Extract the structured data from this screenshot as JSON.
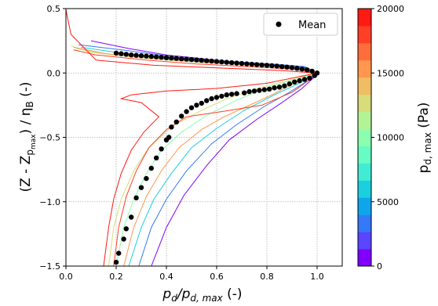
{
  "chart_data": {
    "type": "line",
    "xlabel_main": "p",
    "xlabel_sub1": "d",
    "xlabel_mid": "/p",
    "xlabel_sub2": "d, max",
    "xlabel_unit": " (-)",
    "ylabel_a": "(Z - Z",
    "ylabel_sub": "p",
    "ylabel_subsub": "max",
    "ylabel_b": ") / η",
    "ylabel_sub2": "B",
    "ylabel_unit": " (-)",
    "xlim": [
      0.0,
      1.1
    ],
    "ylim": [
      -1.5,
      0.5
    ],
    "xticks": [
      "0.0",
      "0.2",
      "0.4",
      "0.6",
      "0.8",
      "1.0"
    ],
    "yticks": [
      "0.5",
      "0.0",
      "−0.5",
      "−1.0",
      "−1.5"
    ],
    "grid": true,
    "legend_position": "top-right",
    "legend_label": "Mean",
    "colorbar": {
      "label_main": "p",
      "label_sub": "d, max",
      "label_unit": " (Pa)",
      "range": [
        0,
        20000
      ],
      "ticks": [
        "0",
        "5000",
        "10000",
        "15000",
        "20000"
      ],
      "colors": [
        "#8000ff",
        "#5a46fe",
        "#3479f6",
        "#0ea5eb",
        "#1acfe0",
        "#40ecd4",
        "#66fcc4",
        "#8cfeb0",
        "#b2f396",
        "#d8dc7a",
        "#f0bd62",
        "#ff974d",
        "#ff6e3a",
        "#ff4027",
        "#ff1a13"
      ]
    },
    "mean": {
      "name": "Mean",
      "points": [
        [
          0.2,
          0.155
        ],
        [
          0.22,
          0.15
        ],
        [
          0.24,
          0.145
        ],
        [
          0.26,
          0.14
        ],
        [
          0.28,
          0.137
        ],
        [
          0.3,
          0.134
        ],
        [
          0.32,
          0.131
        ],
        [
          0.34,
          0.128
        ],
        [
          0.36,
          0.125
        ],
        [
          0.38,
          0.122
        ],
        [
          0.4,
          0.119
        ],
        [
          0.42,
          0.116
        ],
        [
          0.44,
          0.113
        ],
        [
          0.46,
          0.11
        ],
        [
          0.48,
          0.107
        ],
        [
          0.5,
          0.104
        ],
        [
          0.52,
          0.101
        ],
        [
          0.54,
          0.098
        ],
        [
          0.56,
          0.095
        ],
        [
          0.58,
          0.092
        ],
        [
          0.6,
          0.089
        ],
        [
          0.62,
          0.086
        ],
        [
          0.64,
          0.083
        ],
        [
          0.66,
          0.08
        ],
        [
          0.68,
          0.077
        ],
        [
          0.7,
          0.074
        ],
        [
          0.72,
          0.071
        ],
        [
          0.74,
          0.068
        ],
        [
          0.76,
          0.065
        ],
        [
          0.78,
          0.062
        ],
        [
          0.8,
          0.059
        ],
        [
          0.82,
          0.056
        ],
        [
          0.84,
          0.053
        ],
        [
          0.86,
          0.049
        ],
        [
          0.88,
          0.045
        ],
        [
          0.9,
          0.041
        ],
        [
          0.92,
          0.036
        ],
        [
          0.94,
          0.031
        ],
        [
          0.96,
          0.024
        ],
        [
          0.98,
          0.014
        ],
        [
          1.0,
          0.0
        ],
        [
          0.99,
          -0.02
        ],
        [
          0.97,
          -0.04
        ],
        [
          0.95,
          -0.05
        ],
        [
          0.93,
          -0.06
        ],
        [
          0.91,
          -0.07
        ],
        [
          0.89,
          -0.085
        ],
        [
          0.87,
          -0.1
        ],
        [
          0.85,
          -0.11
        ],
        [
          0.83,
          -0.115
        ],
        [
          0.81,
          -0.125
        ],
        [
          0.79,
          -0.13
        ],
        [
          0.77,
          -0.135
        ],
        [
          0.75,
          -0.14
        ],
        [
          0.73,
          -0.145
        ],
        [
          0.71,
          -0.155
        ],
        [
          0.68,
          -0.16
        ],
        [
          0.66,
          -0.165
        ],
        [
          0.64,
          -0.17
        ],
        [
          0.62,
          -0.18
        ],
        [
          0.6,
          -0.19
        ],
        [
          0.58,
          -0.2
        ],
        [
          0.56,
          -0.215
        ],
        [
          0.54,
          -0.235
        ],
        [
          0.52,
          -0.25
        ],
        [
          0.5,
          -0.27
        ],
        [
          0.48,
          -0.3
        ],
        [
          0.46,
          -0.335
        ],
        [
          0.44,
          -0.38
        ],
        [
          0.42,
          -0.42
        ],
        [
          0.41,
          -0.5
        ],
        [
          0.4,
          -0.52
        ],
        [
          0.38,
          -0.59
        ],
        [
          0.36,
          -0.66
        ],
        [
          0.34,
          -0.74
        ],
        [
          0.32,
          -0.82
        ],
        [
          0.3,
          -0.89
        ],
        [
          0.28,
          -0.97
        ],
        [
          0.26,
          -1.12
        ],
        [
          0.24,
          -1.21
        ],
        [
          0.23,
          -1.29
        ],
        [
          0.21,
          -1.4
        ],
        [
          0.2,
          -1.47
        ]
      ]
    },
    "profiles": [
      {
        "pmax": 500,
        "points": [
          [
            0.34,
            -1.5
          ],
          [
            0.4,
            -1.2
          ],
          [
            0.47,
            -0.95
          ],
          [
            0.56,
            -0.72
          ],
          [
            0.65,
            -0.52
          ],
          [
            0.76,
            -0.36
          ],
          [
            0.86,
            -0.23
          ],
          [
            0.94,
            -0.12
          ],
          [
            0.99,
            -0.03
          ],
          [
            1.0,
            0.0
          ],
          [
            0.96,
            0.04
          ],
          [
            0.85,
            0.06
          ],
          [
            0.7,
            0.08
          ],
          [
            0.55,
            0.11
          ],
          [
            0.4,
            0.14
          ],
          [
            0.25,
            0.19
          ],
          [
            0.1,
            0.25
          ]
        ]
      },
      {
        "pmax": 3000,
        "points": [
          [
            0.29,
            -1.5
          ],
          [
            0.34,
            -1.2
          ],
          [
            0.4,
            -0.98
          ],
          [
            0.48,
            -0.76
          ],
          [
            0.58,
            -0.55
          ],
          [
            0.68,
            -0.4
          ],
          [
            0.79,
            -0.26
          ],
          [
            0.89,
            -0.15
          ],
          [
            0.97,
            -0.05
          ],
          [
            1.0,
            0.0
          ],
          [
            0.95,
            0.05
          ],
          [
            0.82,
            0.07
          ],
          [
            0.65,
            0.09
          ],
          [
            0.45,
            0.12
          ],
          [
            0.22,
            0.18
          ],
          [
            0.05,
            0.22
          ]
        ]
      },
      {
        "pmax": 6000,
        "points": [
          [
            0.25,
            -1.5
          ],
          [
            0.3,
            -1.2
          ],
          [
            0.35,
            -0.98
          ],
          [
            0.42,
            -0.78
          ],
          [
            0.5,
            -0.58
          ],
          [
            0.6,
            -0.43
          ],
          [
            0.71,
            -0.29
          ],
          [
            0.83,
            -0.17
          ],
          [
            0.94,
            -0.07
          ],
          [
            1.0,
            0.0
          ],
          [
            0.94,
            0.04
          ],
          [
            0.78,
            0.06
          ],
          [
            0.6,
            0.08
          ],
          [
            0.4,
            0.11
          ],
          [
            0.2,
            0.16
          ],
          [
            0.06,
            0.2
          ]
        ]
      },
      {
        "pmax": 9500,
        "points": [
          [
            0.2,
            -1.5
          ],
          [
            0.23,
            -1.2
          ],
          [
            0.27,
            -0.98
          ],
          [
            0.32,
            -0.78
          ],
          [
            0.38,
            -0.6
          ],
          [
            0.46,
            -0.46
          ],
          [
            0.56,
            -0.33
          ],
          [
            0.68,
            -0.21
          ],
          [
            0.82,
            -0.1
          ],
          [
            0.95,
            -0.03
          ],
          [
            1.0,
            0.0
          ],
          [
            0.92,
            0.04
          ],
          [
            0.75,
            0.06
          ],
          [
            0.55,
            0.08
          ],
          [
            0.35,
            0.11
          ],
          [
            0.15,
            0.15
          ],
          [
            0.04,
            0.19
          ]
        ]
      },
      {
        "pmax": 12500,
        "points": [
          [
            0.17,
            -1.5
          ],
          [
            0.19,
            -1.2
          ],
          [
            0.22,
            -0.98
          ],
          [
            0.27,
            -0.76
          ],
          [
            0.33,
            -0.58
          ],
          [
            0.42,
            -0.42
          ],
          [
            0.53,
            -0.3
          ],
          [
            0.64,
            -0.2
          ],
          [
            0.78,
            -0.11
          ],
          [
            0.92,
            -0.04
          ],
          [
            1.0,
            0.0
          ],
          [
            0.9,
            0.05
          ],
          [
            0.7,
            0.07
          ],
          [
            0.48,
            0.09
          ],
          [
            0.28,
            0.12
          ],
          [
            0.1,
            0.16
          ],
          [
            0.02,
            0.21
          ]
        ]
      },
      {
        "pmax": 15500,
        "points": [
          [
            0.23,
            -1.5
          ],
          [
            0.27,
            -1.2
          ],
          [
            0.32,
            -0.96
          ],
          [
            0.38,
            -0.76
          ],
          [
            0.45,
            -0.58
          ],
          [
            0.54,
            -0.44
          ],
          [
            0.63,
            -0.34
          ],
          [
            0.72,
            -0.26
          ],
          [
            0.82,
            -0.17
          ],
          [
            0.92,
            -0.07
          ],
          [
            1.0,
            0.0
          ],
          [
            0.93,
            0.04
          ],
          [
            0.76,
            0.06
          ],
          [
            0.56,
            0.08
          ],
          [
            0.36,
            0.11
          ],
          [
            0.16,
            0.15
          ],
          [
            0.03,
            0.2
          ]
        ]
      },
      {
        "pmax": 18500,
        "points": [
          [
            0.19,
            -1.5
          ],
          [
            0.21,
            -1.2
          ],
          [
            0.24,
            -0.96
          ],
          [
            0.28,
            -0.76
          ],
          [
            0.33,
            -0.58
          ],
          [
            0.4,
            -0.44
          ],
          [
            0.48,
            -0.34
          ],
          [
            0.62,
            -0.3
          ],
          [
            0.78,
            -0.25
          ],
          [
            0.9,
            -0.15
          ],
          [
            0.98,
            -0.04
          ],
          [
            1.0,
            0.0
          ],
          [
            0.9,
            0.03
          ],
          [
            0.72,
            0.05
          ],
          [
            0.52,
            0.07
          ],
          [
            0.32,
            0.1
          ],
          [
            0.12,
            0.14
          ],
          [
            0.03,
            0.18
          ]
        ]
      },
      {
        "pmax": 19800,
        "points": [
          [
            0.15,
            -1.5
          ],
          [
            0.17,
            -1.2
          ],
          [
            0.19,
            -0.98
          ],
          [
            0.22,
            -0.78
          ],
          [
            0.26,
            -0.6
          ],
          [
            0.31,
            -0.46
          ],
          [
            0.37,
            -0.34
          ],
          [
            0.3,
            -0.23
          ],
          [
            0.22,
            -0.2
          ],
          [
            0.26,
            -0.17
          ],
          [
            0.4,
            -0.14
          ],
          [
            0.6,
            -0.12
          ],
          [
            0.8,
            -0.08
          ],
          [
            0.95,
            -0.02
          ],
          [
            1.0,
            0.0
          ],
          [
            0.85,
            0.02
          ],
          [
            0.6,
            0.04
          ],
          [
            0.35,
            0.06
          ],
          [
            0.12,
            0.1
          ],
          [
            0.02,
            0.3
          ],
          [
            0.0,
            0.49
          ]
        ]
      }
    ]
  }
}
